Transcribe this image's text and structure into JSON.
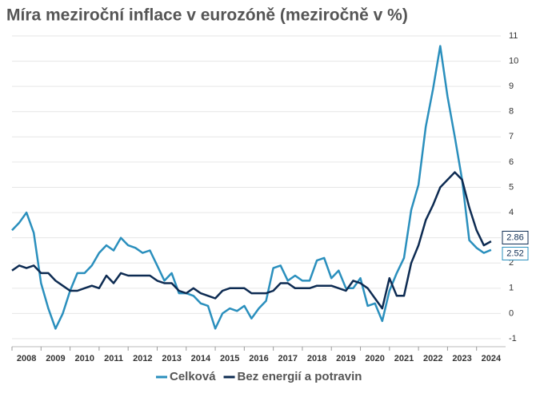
{
  "chart_data": {
    "type": "line",
    "title": "Míra meziroční inflace v eurozóně (meziročně v %)",
    "x": [
      2008,
      2008.25,
      2008.5,
      2008.75,
      2009,
      2009.25,
      2009.5,
      2009.75,
      2010,
      2010.25,
      2010.5,
      2010.75,
      2011,
      2011.25,
      2011.5,
      2011.75,
      2012,
      2012.25,
      2012.5,
      2012.75,
      2013,
      2013.25,
      2013.5,
      2013.75,
      2014,
      2014.25,
      2014.5,
      2014.75,
      2015,
      2015.25,
      2015.5,
      2015.75,
      2016,
      2016.25,
      2016.5,
      2016.75,
      2017,
      2017.25,
      2017.5,
      2017.75,
      2018,
      2018.25,
      2018.5,
      2018.75,
      2019,
      2019.25,
      2019.5,
      2019.75,
      2020,
      2020.25,
      2020.5,
      2020.75,
      2021,
      2021.25,
      2021.5,
      2021.75,
      2022,
      2022.25,
      2022.5,
      2022.75,
      2023,
      2023.25,
      2023.5,
      2023.75,
      2024,
      2024.25,
      2024.5
    ],
    "series": [
      {
        "name": "Celková",
        "color": "#2a8fbd",
        "values": [
          3.3,
          3.6,
          4.0,
          3.2,
          1.2,
          0.2,
          -0.6,
          0.0,
          0.9,
          1.6,
          1.6,
          1.9,
          2.4,
          2.7,
          2.5,
          3.0,
          2.7,
          2.6,
          2.4,
          2.5,
          1.9,
          1.3,
          1.6,
          0.8,
          0.8,
          0.7,
          0.4,
          0.3,
          -0.6,
          0.0,
          0.2,
          0.1,
          0.3,
          -0.2,
          0.2,
          0.5,
          1.8,
          1.9,
          1.3,
          1.5,
          1.3,
          1.3,
          2.1,
          2.2,
          1.4,
          1.7,
          1.0,
          1.0,
          1.4,
          0.3,
          0.4,
          -0.3,
          0.9,
          1.6,
          2.2,
          4.1,
          5.1,
          7.4,
          8.9,
          10.6,
          8.6,
          7.0,
          5.3,
          2.9,
          2.6,
          2.4,
          2.52
        ]
      },
      {
        "name": "Bez energií a potravin",
        "color": "#0d2b52",
        "values": [
          1.7,
          1.9,
          1.8,
          1.9,
          1.6,
          1.6,
          1.3,
          1.1,
          0.9,
          0.9,
          1.0,
          1.1,
          1.0,
          1.5,
          1.2,
          1.6,
          1.5,
          1.5,
          1.5,
          1.5,
          1.3,
          1.2,
          1.2,
          0.9,
          0.8,
          1.0,
          0.8,
          0.7,
          0.6,
          0.9,
          1.0,
          1.0,
          1.0,
          0.8,
          0.8,
          0.8,
          0.9,
          1.2,
          1.2,
          1.0,
          1.0,
          1.0,
          1.1,
          1.1,
          1.1,
          1.0,
          0.9,
          1.3,
          1.2,
          1.0,
          0.6,
          0.2,
          1.4,
          0.7,
          0.7,
          2.0,
          2.7,
          3.7,
          4.3,
          5.0,
          5.3,
          5.6,
          5.3,
          4.2,
          3.3,
          2.7,
          2.86
        ]
      }
    ],
    "xlim": [
      2008,
      2025
    ],
    "xticks": [
      2008,
      2009,
      2010,
      2011,
      2012,
      2013,
      2014,
      2015,
      2016,
      2017,
      2018,
      2019,
      2020,
      2021,
      2022,
      2023,
      2024
    ],
    "ylim": [
      -1,
      11
    ],
    "yticks": [
      -1,
      0,
      1,
      2,
      3,
      4,
      5,
      6,
      7,
      8,
      9,
      10,
      11
    ],
    "grid": true,
    "end_labels": true,
    "legend": "bottom"
  }
}
